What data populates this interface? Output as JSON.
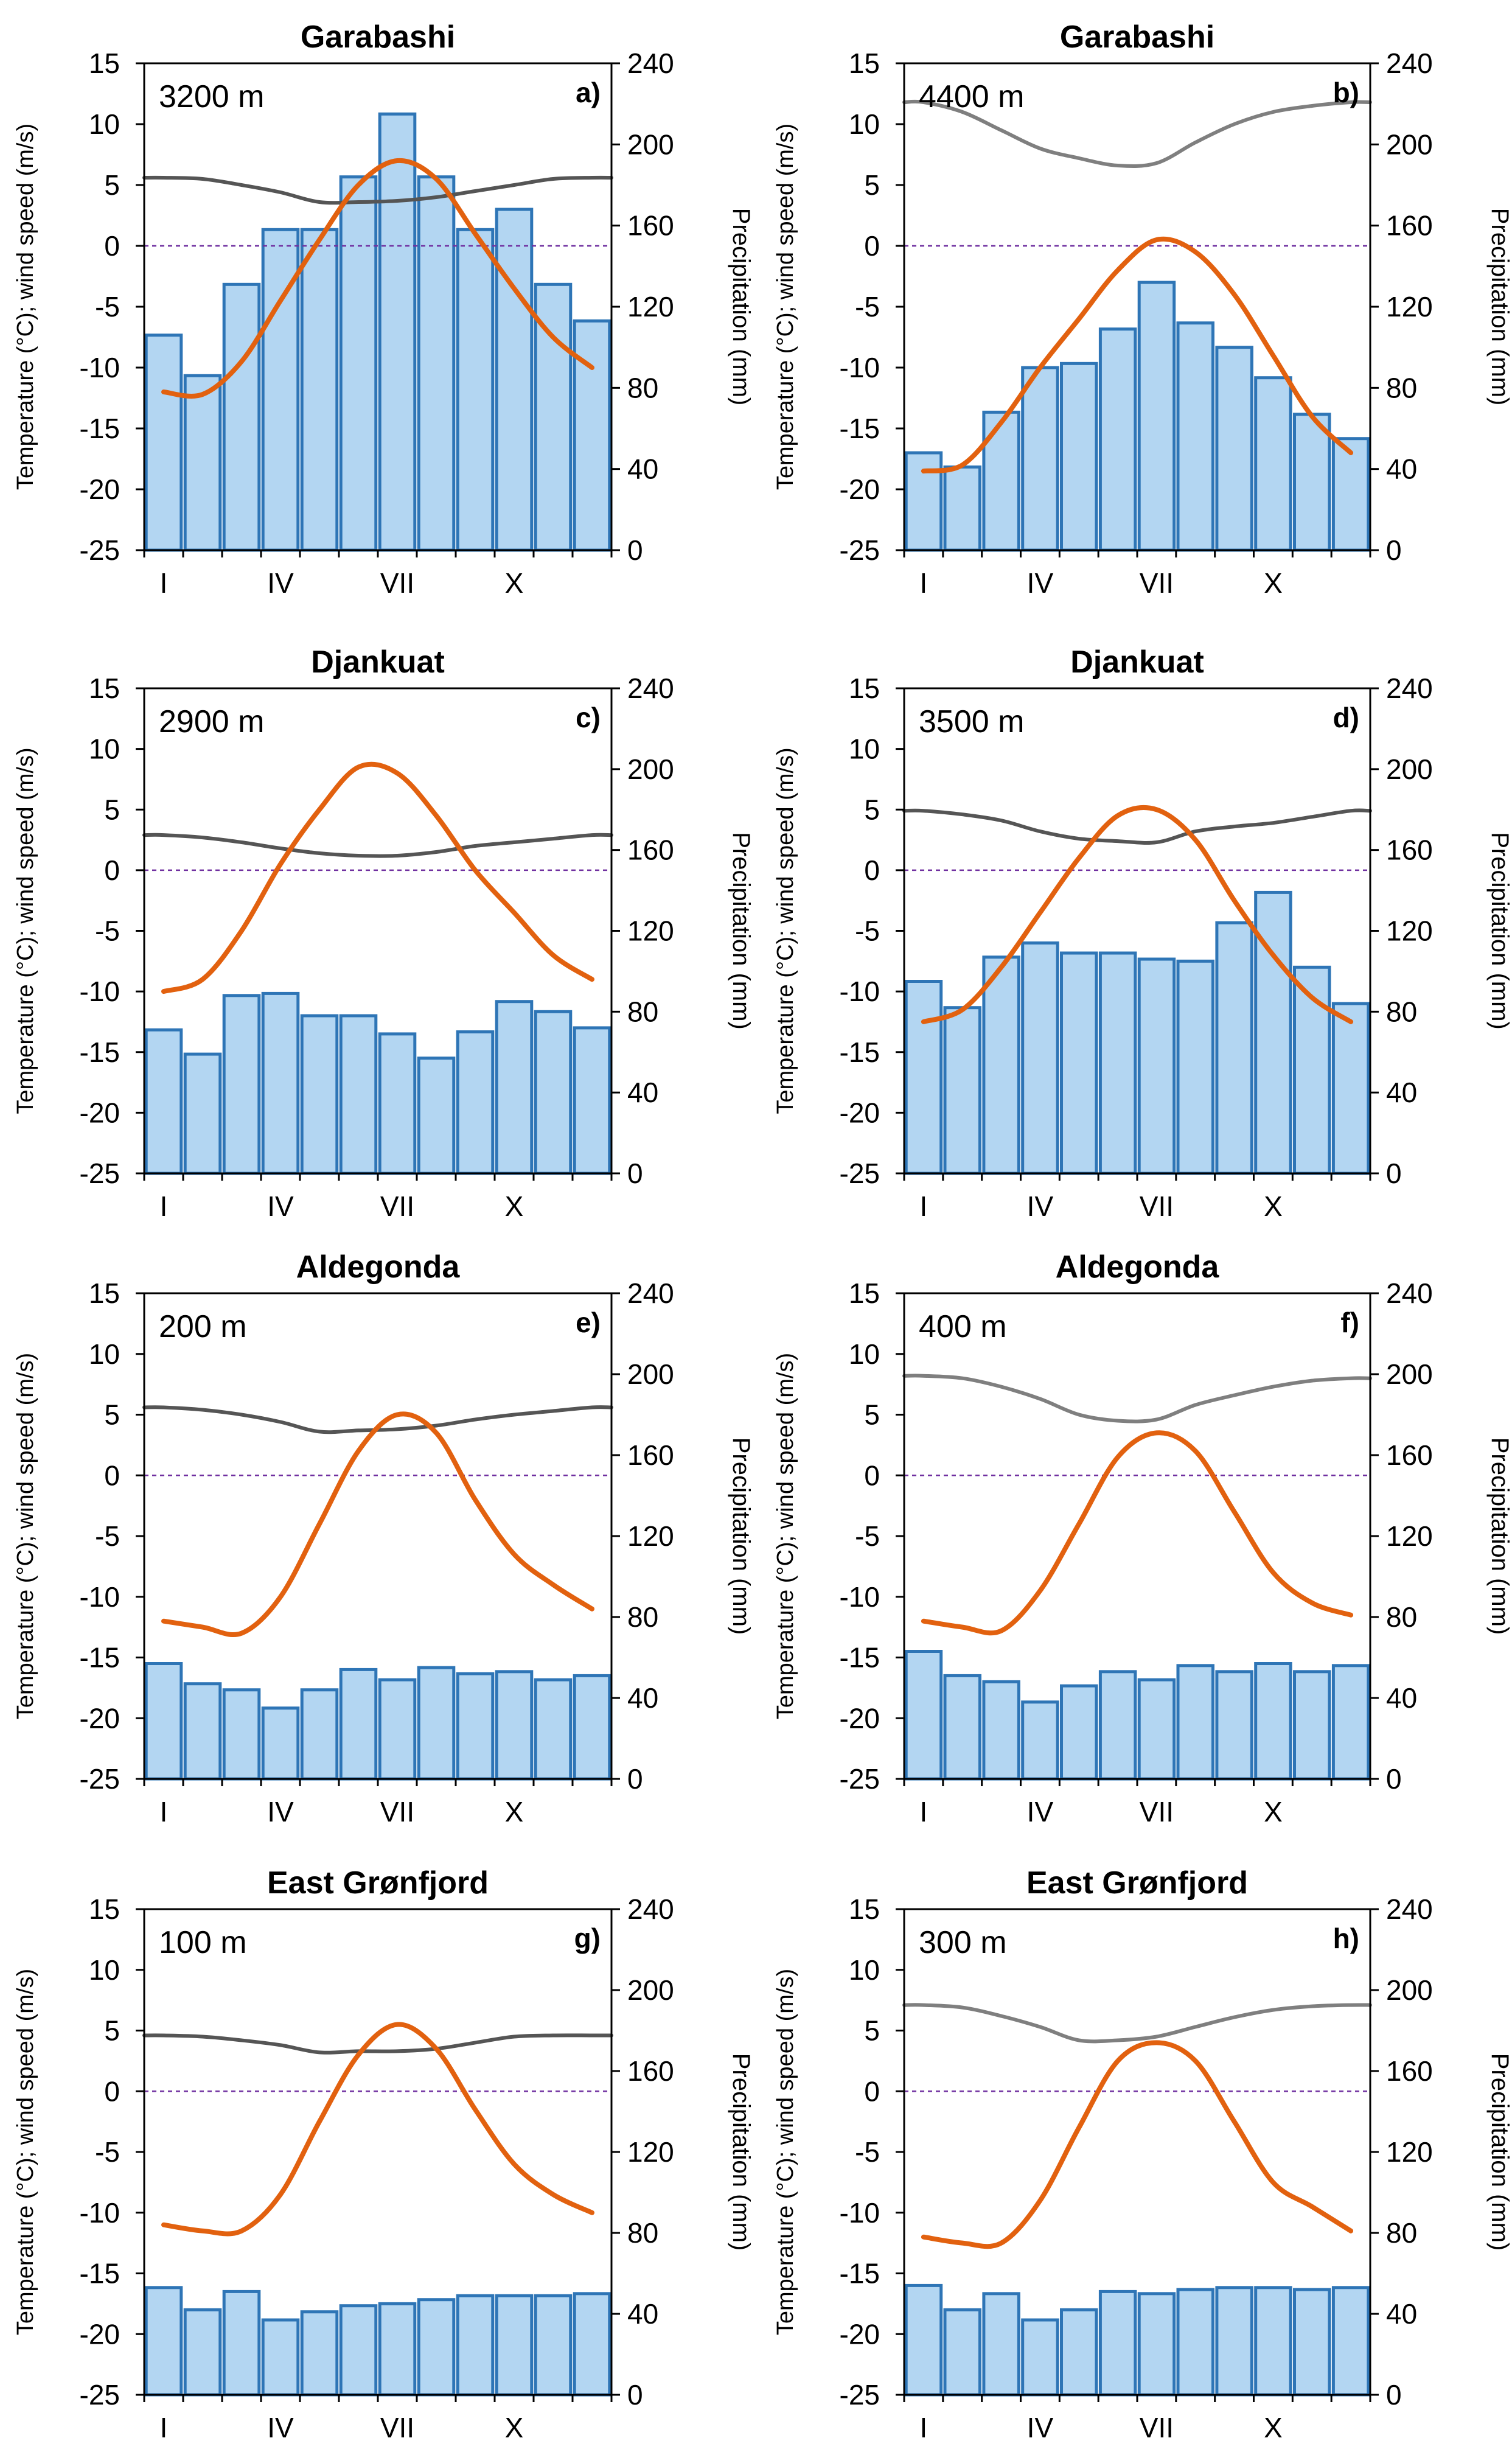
{
  "figure": {
    "month_labels": [
      "I",
      "IV",
      "VII",
      "X"
    ],
    "left_axis_label": "Temperature (°C);  wind speed (m/s)",
    "right_axis_label": "Precipitation (mm)",
    "left_ticks": [
      15,
      10,
      5,
      0,
      -5,
      -10,
      -15,
      -20,
      -25
    ],
    "right_ticks": [
      240,
      200,
      160,
      120,
      80,
      40,
      0
    ],
    "colors": {
      "precip_fill": "#b3d6f2",
      "precip_edge": "#2e75b6",
      "temperature": "#e2610f",
      "wind_dark": "#555555",
      "wind_light": "#7f7f7f",
      "zero_line": "#7030a0"
    }
  },
  "chart_data": [
    {
      "type": "bar+line",
      "title": "Garabashi",
      "elevation": "3200 m",
      "letter": "a)",
      "ylabel_left": "Temperature (°C);  wind speed (m/s)",
      "ylabel_right": "Precipitation (mm)",
      "ylim_left": [
        -25,
        15
      ],
      "ylim_right": [
        0,
        240
      ],
      "months": [
        1,
        2,
        3,
        4,
        5,
        6,
        7,
        8,
        9,
        10,
        11,
        12
      ],
      "series": [
        {
          "name": "Precipitation",
          "axis": "right",
          "values": [
            106,
            86,
            131,
            158,
            158,
            184,
            215,
            184,
            158,
            168,
            131,
            113
          ]
        },
        {
          "name": "Air temperature",
          "axis": "left",
          "values": [
            -12.0,
            -12.2,
            -9.5,
            -4.5,
            0.5,
            5.0,
            7.0,
            5.5,
            1.0,
            -3.5,
            -7.5,
            -10.0
          ]
        },
        {
          "name": "Wind speed",
          "axis": "left",
          "values": [
            5.6,
            5.5,
            5.0,
            4.4,
            3.6,
            3.6,
            3.7,
            4.0,
            4.5,
            5.0,
            5.5,
            5.6
          ]
        }
      ]
    },
    {
      "type": "bar+line",
      "title": "Garabashi",
      "elevation": "4400 m",
      "letter": "b)",
      "ylabel_left": "Temperature (°C);  wind speed (m/s)",
      "ylabel_right": "Precipitation (mm)",
      "ylim_left": [
        -25,
        15
      ],
      "ylim_right": [
        0,
        240
      ],
      "months": [
        1,
        2,
        3,
        4,
        5,
        6,
        7,
        8,
        9,
        10,
        11,
        12
      ],
      "series": [
        {
          "name": "Precipitation",
          "axis": "right",
          "values": [
            48,
            41,
            68,
            90,
            92,
            109,
            132,
            112,
            100,
            85,
            67,
            55
          ]
        },
        {
          "name": "Air temperature",
          "axis": "left",
          "values": [
            -18.5,
            -18.0,
            -14.5,
            -10.0,
            -6.0,
            -2.0,
            0.5,
            -0.5,
            -4.0,
            -9.0,
            -14.0,
            -17.0
          ]
        },
        {
          "name": "Wind speed",
          "axis": "left",
          "values": [
            11.8,
            11.0,
            9.5,
            8.0,
            7.2,
            6.6,
            6.8,
            8.5,
            10.0,
            11.0,
            11.5,
            11.8
          ]
        }
      ]
    },
    {
      "type": "bar+line",
      "title": "Djankuat",
      "elevation": "2900 m",
      "letter": "c)",
      "ylabel_left": "Temperature (°C);  wind speed (m/s)",
      "ylabel_right": "Precipitation (mm)",
      "ylim_left": [
        -25,
        15
      ],
      "ylim_right": [
        0,
        240
      ],
      "months": [
        1,
        2,
        3,
        4,
        5,
        6,
        7,
        8,
        9,
        10,
        11,
        12
      ],
      "series": [
        {
          "name": "Precipitation",
          "axis": "right",
          "values": [
            71,
            59,
            88,
            89,
            78,
            78,
            69,
            57,
            70,
            85,
            80,
            72
          ]
        },
        {
          "name": "Air temperature",
          "axis": "left",
          "values": [
            -10.0,
            -9.0,
            -5.0,
            0.5,
            5.0,
            8.5,
            8.0,
            4.5,
            0.0,
            -3.5,
            -7.0,
            -9.0
          ]
        },
        {
          "name": "Wind speed",
          "axis": "left",
          "values": [
            2.9,
            2.7,
            2.3,
            1.8,
            1.4,
            1.2,
            1.2,
            1.5,
            2.0,
            2.3,
            2.6,
            2.9
          ]
        }
      ]
    },
    {
      "type": "bar+line",
      "title": "Djankuat",
      "elevation": "3500 m",
      "letter": "d)",
      "ylabel_left": "Temperature (°C);  wind speed (m/s)",
      "ylabel_right": "Precipitation (mm)",
      "ylim_left": [
        -25,
        15
      ],
      "ylim_right": [
        0,
        240
      ],
      "months": [
        1,
        2,
        3,
        4,
        5,
        6,
        7,
        8,
        9,
        10,
        11,
        12
      ],
      "series": [
        {
          "name": "Precipitation",
          "axis": "right",
          "values": [
            95,
            82,
            107,
            114,
            109,
            109,
            106,
            105,
            124,
            139,
            102,
            84
          ]
        },
        {
          "name": "Air temperature",
          "axis": "left",
          "values": [
            -12.5,
            -11.5,
            -8.0,
            -3.5,
            1.0,
            4.5,
            5.0,
            2.5,
            -2.5,
            -7.0,
            -10.5,
            -12.5
          ]
        },
        {
          "name": "Wind speed",
          "axis": "left",
          "values": [
            4.9,
            4.6,
            4.1,
            3.2,
            2.6,
            2.4,
            2.3,
            3.2,
            3.6,
            3.9,
            4.4,
            4.9
          ]
        }
      ]
    },
    {
      "type": "bar+line",
      "title": "Aldegonda",
      "elevation": "200 m",
      "letter": "e)",
      "ylabel_left": "Temperature (°C);  wind speed (m/s)",
      "ylabel_right": "Precipitation (mm)",
      "ylim_left": [
        -25,
        15
      ],
      "ylim_right": [
        0,
        240
      ],
      "months": [
        1,
        2,
        3,
        4,
        5,
        6,
        7,
        8,
        9,
        10,
        11,
        12
      ],
      "series": [
        {
          "name": "Precipitation",
          "axis": "right",
          "values": [
            57,
            47,
            44,
            35,
            44,
            54,
            49,
            55,
            52,
            53,
            49,
            51
          ]
        },
        {
          "name": "Air temperature",
          "axis": "left",
          "values": [
            -12.0,
            -12.5,
            -13.0,
            -10.0,
            -4.0,
            2.0,
            5.0,
            3.5,
            -2.0,
            -6.5,
            -9.0,
            -11.0
          ]
        },
        {
          "name": "Wind speed",
          "axis": "left",
          "values": [
            5.6,
            5.4,
            5.0,
            4.4,
            3.6,
            3.7,
            3.8,
            4.1,
            4.6,
            5.0,
            5.3,
            5.6
          ]
        }
      ]
    },
    {
      "type": "bar+line",
      "title": "Aldegonda",
      "elevation": "400 m",
      "letter": "f)",
      "ylabel_left": "Temperature (°C);  wind speed (m/s)",
      "ylabel_right": "Precipitation (mm)",
      "ylim_left": [
        -25,
        15
      ],
      "ylim_right": [
        0,
        240
      ],
      "months": [
        1,
        2,
        3,
        4,
        5,
        6,
        7,
        8,
        9,
        10,
        11,
        12
      ],
      "series": [
        {
          "name": "Precipitation",
          "axis": "right",
          "values": [
            63,
            51,
            48,
            38,
            46,
            53,
            49,
            56,
            53,
            57,
            53,
            56
          ]
        },
        {
          "name": "Air temperature",
          "axis": "left",
          "values": [
            -12.0,
            -12.5,
            -12.8,
            -9.5,
            -4.0,
            1.5,
            3.5,
            2.0,
            -3.0,
            -8.0,
            -10.5,
            -11.5
          ]
        },
        {
          "name": "Wind speed",
          "axis": "left",
          "values": [
            8.2,
            8.0,
            7.3,
            6.3,
            5.0,
            4.5,
            4.6,
            5.8,
            6.6,
            7.3,
            7.8,
            8.0
          ]
        }
      ]
    },
    {
      "type": "bar+line",
      "title": "East Grønfjord",
      "elevation": "100 m",
      "letter": "g)",
      "ylabel_left": "Temperature (°C);  wind speed (m/s)",
      "ylabel_right": "Precipitation (mm)",
      "ylim_left": [
        -25,
        15
      ],
      "ylim_right": [
        0,
        240
      ],
      "months": [
        1,
        2,
        3,
        4,
        5,
        6,
        7,
        8,
        9,
        10,
        11,
        12
      ],
      "series": [
        {
          "name": "Precipitation",
          "axis": "right",
          "values": [
            53,
            42,
            51,
            37,
            41,
            44,
            45,
            47,
            49,
            49,
            49,
            50
          ]
        },
        {
          "name": "Air temperature",
          "axis": "left",
          "values": [
            -11.0,
            -11.5,
            -11.5,
            -8.5,
            -2.5,
            3.0,
            5.5,
            3.5,
            -1.5,
            -6.0,
            -8.5,
            -10.0
          ]
        },
        {
          "name": "Wind speed",
          "axis": "left",
          "values": [
            4.6,
            4.5,
            4.2,
            3.8,
            3.2,
            3.3,
            3.3,
            3.5,
            4.0,
            4.5,
            4.6,
            4.6
          ]
        }
      ]
    },
    {
      "type": "bar+line",
      "title": "East Grønfjord",
      "elevation": "300 m",
      "letter": "h)",
      "ylabel_left": "Temperature (°C);  wind speed (m/s)",
      "ylabel_right": "Precipitation (mm)",
      "ylim_left": [
        -25,
        15
      ],
      "ylim_right": [
        0,
        240
      ],
      "months": [
        1,
        2,
        3,
        4,
        5,
        6,
        7,
        8,
        9,
        10,
        11,
        12
      ],
      "series": [
        {
          "name": "Precipitation",
          "axis": "right",
          "values": [
            54,
            42,
            50,
            37,
            42,
            51,
            50,
            52,
            53,
            53,
            52,
            53
          ]
        },
        {
          "name": "Air temperature",
          "axis": "left",
          "values": [
            -12.0,
            -12.5,
            -12.5,
            -9.0,
            -3.0,
            2.5,
            4.0,
            2.5,
            -2.5,
            -7.5,
            -9.5,
            -11.5
          ]
        },
        {
          "name": "Wind speed",
          "axis": "left",
          "values": [
            7.1,
            6.9,
            6.2,
            5.3,
            4.2,
            4.2,
            4.5,
            5.3,
            6.1,
            6.7,
            7.0,
            7.1
          ]
        }
      ]
    }
  ]
}
